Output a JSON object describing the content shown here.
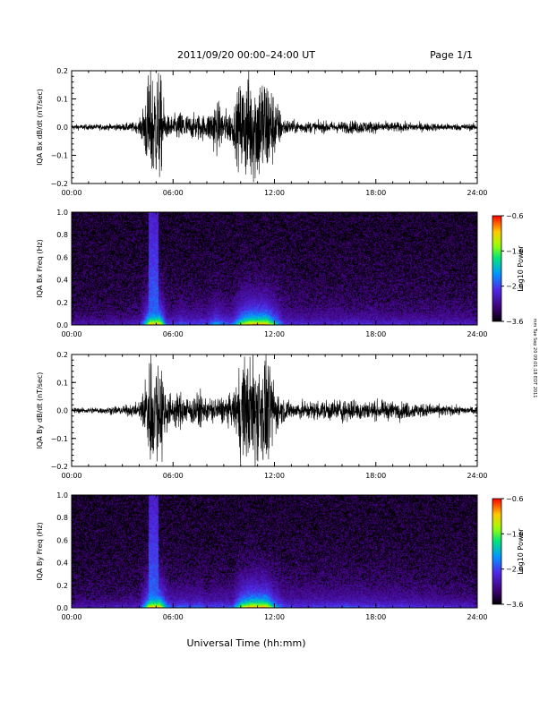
{
  "header": {
    "title": "2011/09/20  00:00–24:00 UT",
    "page": "Page 1/1"
  },
  "footer": {
    "xlabel": "Universal Time (hh:mm)",
    "side_note": "mm Tue Sep 20 09:01:18 EDT 2011"
  },
  "chart_data": [
    {
      "type": "line",
      "ylabel": "IQA Bx dB/dt (nT/sec)",
      "xlim": [
        0,
        24
      ],
      "ylim": [
        -0.2,
        0.2
      ],
      "xticks": [
        "00:00",
        "06:00",
        "12:00",
        "18:00",
        "24:00"
      ],
      "yticks": [
        "−0.2",
        "−0.1",
        "0.0",
        "0.1",
        "0.2"
      ],
      "ytick_values": [
        -0.2,
        -0.1,
        0.0,
        0.1,
        0.2
      ],
      "envelope": {
        "x_hours": [
          0,
          1,
          2,
          3,
          4,
          4.3,
          4.6,
          4.8,
          5.2,
          5.6,
          6,
          6.5,
          7,
          7.5,
          8,
          8.5,
          9,
          9.5,
          10,
          10.5,
          11,
          11.5,
          12,
          12.5,
          13,
          14,
          15,
          16,
          17,
          18,
          19,
          20,
          21,
          22,
          23,
          24
        ],
        "amplitude": [
          0.012,
          0.012,
          0.013,
          0.015,
          0.025,
          0.12,
          0.25,
          0.25,
          0.25,
          0.05,
          0.05,
          0.07,
          0.05,
          0.06,
          0.05,
          0.12,
          0.08,
          0.07,
          0.2,
          0.25,
          0.25,
          0.25,
          0.15,
          0.04,
          0.03,
          0.025,
          0.025,
          0.025,
          0.03,
          0.025,
          0.022,
          0.02,
          0.018,
          0.016,
          0.015,
          0.015
        ]
      }
    },
    {
      "type": "heatmap",
      "ylabel": "IQA Bx Freq (Hz)",
      "xlim": [
        0,
        24
      ],
      "ylim": [
        0,
        1.0
      ],
      "xticks": [
        "00:00",
        "06:00",
        "12:00",
        "18:00",
        "24:00"
      ],
      "yticks": [
        "0.0",
        "0.2",
        "0.4",
        "0.6",
        "0.8",
        "1.0"
      ],
      "ytick_values": [
        0,
        0.2,
        0.4,
        0.6,
        0.8,
        1.0
      ],
      "colorbar": {
        "label": "Log10 Power",
        "range": [
          -3.6,
          -0.6
        ],
        "ticks": [
          "−0.6",
          "−1.6",
          "−2.6",
          "−3.6"
        ],
        "tick_values": [
          -0.6,
          -1.6,
          -2.6,
          -3.6
        ]
      }
    },
    {
      "type": "line",
      "ylabel": "IQA By dB/dt (nT/sec)",
      "xlim": [
        0,
        24
      ],
      "ylim": [
        -0.2,
        0.2
      ],
      "xticks": [
        "00:00",
        "06:00",
        "12:00",
        "18:00",
        "24:00"
      ],
      "yticks": [
        "−0.2",
        "−0.1",
        "0.0",
        "0.1",
        "0.2"
      ],
      "ytick_values": [
        -0.2,
        -0.1,
        0.0,
        0.1,
        0.2
      ],
      "envelope": {
        "x_hours": [
          0,
          1,
          2,
          3,
          4,
          4.3,
          4.6,
          4.8,
          5.2,
          5.6,
          6,
          6.5,
          7,
          7.5,
          8,
          8.5,
          9,
          9.5,
          10,
          10.5,
          11,
          11.5,
          12,
          12.5,
          13,
          14,
          15,
          16,
          17,
          18,
          19,
          20,
          21,
          22,
          23,
          24
        ],
        "amplitude": [
          0.012,
          0.013,
          0.015,
          0.02,
          0.03,
          0.12,
          0.25,
          0.25,
          0.25,
          0.1,
          0.06,
          0.08,
          0.06,
          0.08,
          0.05,
          0.06,
          0.06,
          0.06,
          0.2,
          0.25,
          0.25,
          0.25,
          0.12,
          0.05,
          0.04,
          0.04,
          0.045,
          0.05,
          0.045,
          0.04,
          0.04,
          0.035,
          0.03,
          0.025,
          0.018,
          0.015
        ]
      }
    },
    {
      "type": "heatmap",
      "ylabel": "IQA By Freq (Hz)",
      "xlim": [
        0,
        24
      ],
      "ylim": [
        0,
        1.0
      ],
      "xticks": [
        "00:00",
        "06:00",
        "12:00",
        "18:00",
        "24:00"
      ],
      "yticks": [
        "0.0",
        "0.2",
        "0.4",
        "0.6",
        "0.8",
        "1.0"
      ],
      "ytick_values": [
        0,
        0.2,
        0.4,
        0.6,
        0.8,
        1.0
      ],
      "colorbar": {
        "label": "Log10 Power",
        "range": [
          -3.6,
          -0.6
        ],
        "ticks": [
          "−0.6",
          "−1.6",
          "−2.6",
          "−3.6"
        ],
        "tick_values": [
          -0.6,
          -1.6,
          -2.6,
          -3.6
        ]
      }
    }
  ]
}
